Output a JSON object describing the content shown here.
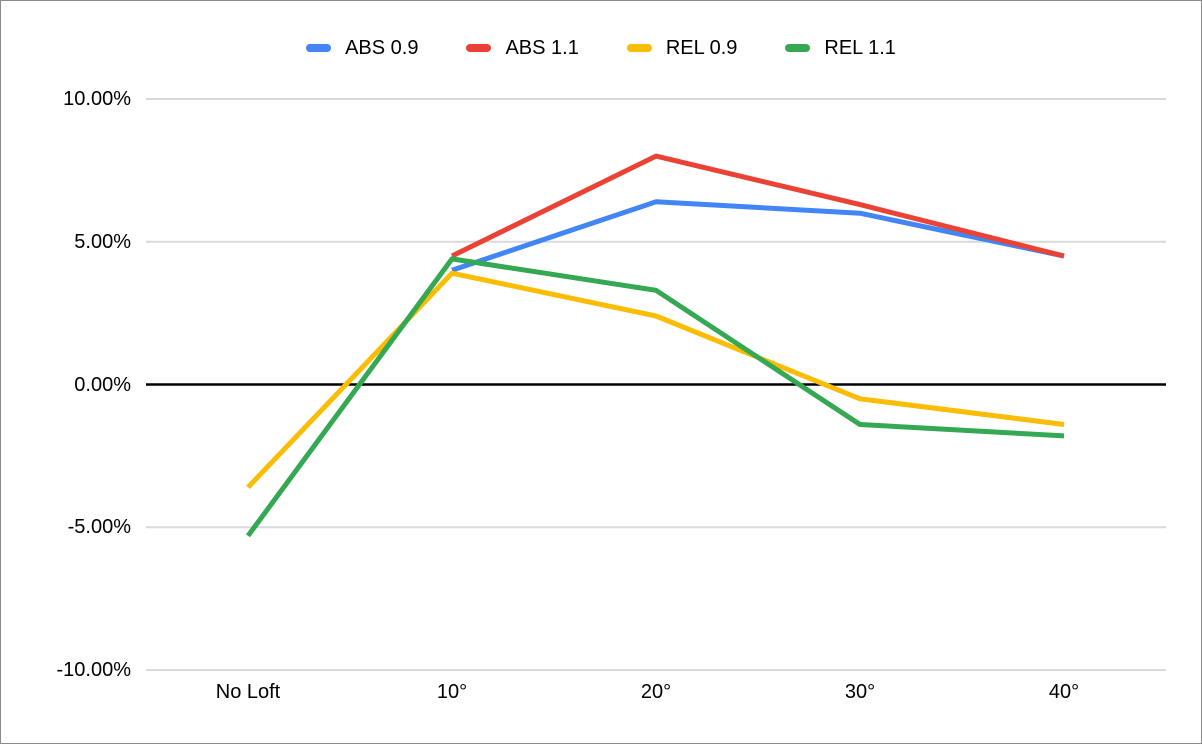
{
  "chart_data": {
    "type": "line",
    "title": "",
    "xlabel": "",
    "ylabel": "",
    "categories": [
      "No Loft",
      "10°",
      "20°",
      "30°",
      "40°"
    ],
    "series": [
      {
        "name": "ABS 0.9",
        "color": "#4285F4",
        "values": [
          null,
          4.0,
          6.4,
          6.0,
          4.5
        ]
      },
      {
        "name": "ABS 1.1",
        "color": "#EA4335",
        "values": [
          null,
          4.5,
          8.0,
          6.3,
          4.5
        ]
      },
      {
        "name": "REL 0.9",
        "color": "#FBBC04",
        "values": [
          -3.6,
          3.9,
          2.4,
          -0.5,
          -1.4
        ]
      },
      {
        "name": "REL 1.1",
        "color": "#34A853",
        "values": [
          -5.3,
          4.4,
          3.3,
          -1.4,
          -1.8
        ]
      }
    ],
    "y_ticks": {
      "values": [
        10,
        5,
        0,
        -5,
        -10
      ],
      "labels": [
        "10.00%",
        "5.00%",
        "0.00%",
        "-5.00%",
        "-10.00%"
      ]
    },
    "ylim": [
      -10,
      10
    ],
    "unit": "%",
    "grid": true,
    "legend_position": "top"
  },
  "colors": {
    "background": "#ffffff",
    "frame_border": "#8b8b8b",
    "gridline": "#d9d9d9",
    "zero_line": "#000000",
    "axis_text": "#000000"
  }
}
